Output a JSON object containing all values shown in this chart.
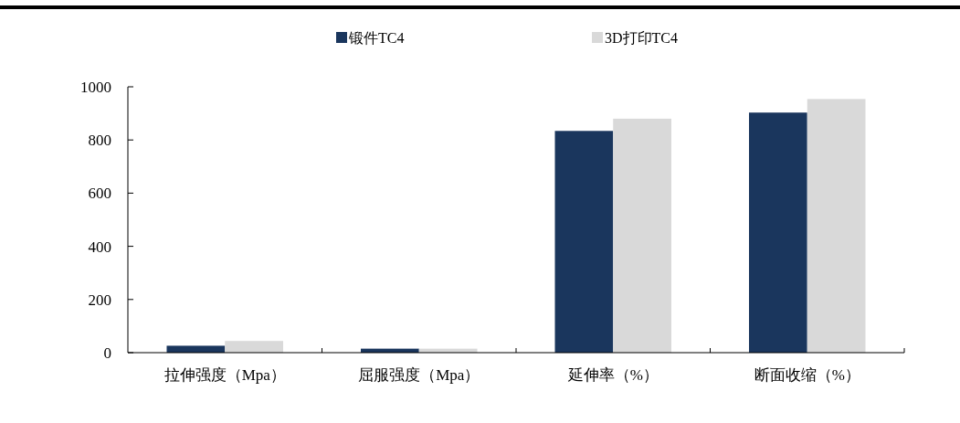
{
  "chart_data": {
    "type": "bar",
    "categories": [
      "拉伸强度（Mpa）",
      "屈服强度（Mpa）",
      "延伸率（%）",
      "断面收缩（%）"
    ],
    "series": [
      {
        "name": "锻件TC4",
        "color": "#1a365d",
        "values": [
          26,
          15,
          834,
          903
        ]
      },
      {
        "name": "3D打印TC4",
        "color": "#d9d9d9",
        "values": [
          44,
          15,
          880,
          954
        ]
      }
    ],
    "ylim": [
      0,
      1000
    ],
    "yticks": [
      0,
      200,
      400,
      600,
      800,
      1000
    ],
    "grid": false,
    "legend": "top"
  }
}
